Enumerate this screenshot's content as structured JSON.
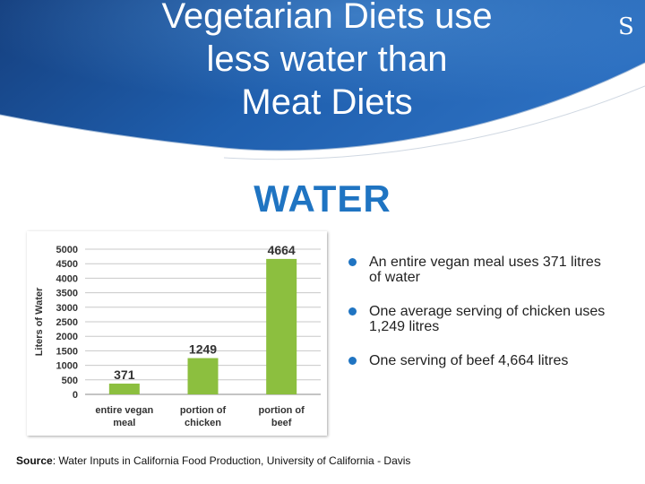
{
  "slide": {
    "title": "Vegetarian Diets use\nless water than\nMeat Diets",
    "subtitle": "WATER",
    "bullets": [
      "An entire vegan meal uses 371 litres of water",
      "One average serving of chicken uses 1,249 litres",
      "One serving of beef 4,664 litres"
    ],
    "source_label": "Source",
    "source_text": ": Water Inputs in California Food Production, University of California - Davis"
  },
  "colors": {
    "header_blue": "#1c5aa6",
    "header_light": "#4f93d8",
    "accent": "#1f74c2",
    "bar": "#8cbf3f",
    "gridline": "#c8c8c8"
  },
  "chart_data": {
    "type": "bar",
    "categories": [
      [
        "entire vegan",
        "meal"
      ],
      [
        "portion of",
        "chicken"
      ],
      [
        "portion of",
        "beef"
      ]
    ],
    "values": [
      371,
      1249,
      4664
    ],
    "data_labels": [
      "371",
      "1249",
      "4664"
    ],
    "ylabel": "Liters of Water",
    "ylim": [
      0,
      5000
    ],
    "yticks": [
      0,
      500,
      1000,
      1500,
      2000,
      2500,
      3000,
      3500,
      4000,
      4500,
      5000
    ],
    "grid": true
  }
}
